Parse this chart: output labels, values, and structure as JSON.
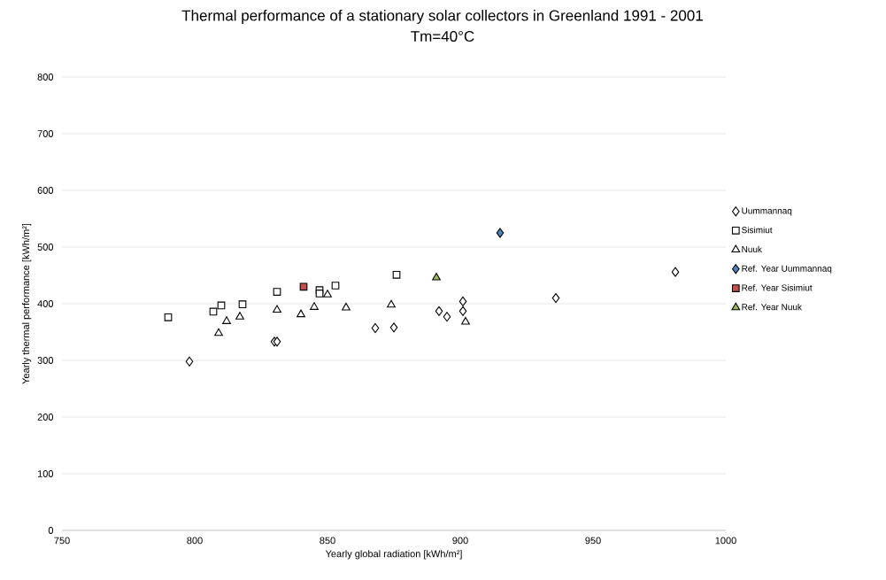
{
  "chart_data": {
    "type": "scatter",
    "title": "Thermal performance of a stationary solar collectors in Greenland 1991 - 2001",
    "subtitle": "Tm=40°C",
    "xlabel": "Yearly global radiation [kWh/m²]",
    "ylabel": "Yearly thermal performance [kWh/m²]",
    "xlim": [
      750,
      1000
    ],
    "ylim": [
      0,
      800
    ],
    "xticks": [
      750,
      800,
      850,
      900,
      950,
      1000
    ],
    "yticks": [
      0,
      100,
      200,
      300,
      400,
      500,
      600,
      700,
      800
    ],
    "grid": "y",
    "legend": "right",
    "series": [
      {
        "name": "Uummannaq",
        "color": "#000000",
        "marker": "diamond",
        "x": [
          798,
          830,
          831,
          868,
          875,
          892,
          895,
          901,
          901,
          936,
          981
        ],
        "values": [
          298,
          333,
          333,
          357,
          358,
          387,
          377,
          404,
          387,
          410,
          456
        ]
      },
      {
        "name": "Sisimiut",
        "color": "#000000",
        "marker": "square",
        "x": [
          790,
          807,
          810,
          818,
          831,
          847,
          847,
          853,
          876
        ],
        "values": [
          376,
          386,
          397,
          399,
          421,
          424,
          418,
          432,
          451
        ]
      },
      {
        "name": "Nuuk",
        "color": "#000000",
        "marker": "triangle",
        "x": [
          809,
          812,
          817,
          831,
          840,
          845,
          850,
          857,
          874,
          902
        ],
        "values": [
          348,
          369,
          377,
          389,
          381,
          394,
          416,
          393,
          398,
          368
        ]
      },
      {
        "name": "Ref. Year Uummannaq",
        "color": "#4f81bd",
        "marker": "diamond",
        "x": [
          915
        ],
        "values": [
          525
        ]
      },
      {
        "name": "Ref. Year Sisimiut",
        "color": "#c0504d",
        "marker": "square",
        "x": [
          841
        ],
        "values": [
          430
        ]
      },
      {
        "name": "Ref. Year Nuuk",
        "color": "#9bbb59",
        "marker": "triangle",
        "x": [
          891
        ],
        "values": [
          446
        ]
      }
    ]
  }
}
